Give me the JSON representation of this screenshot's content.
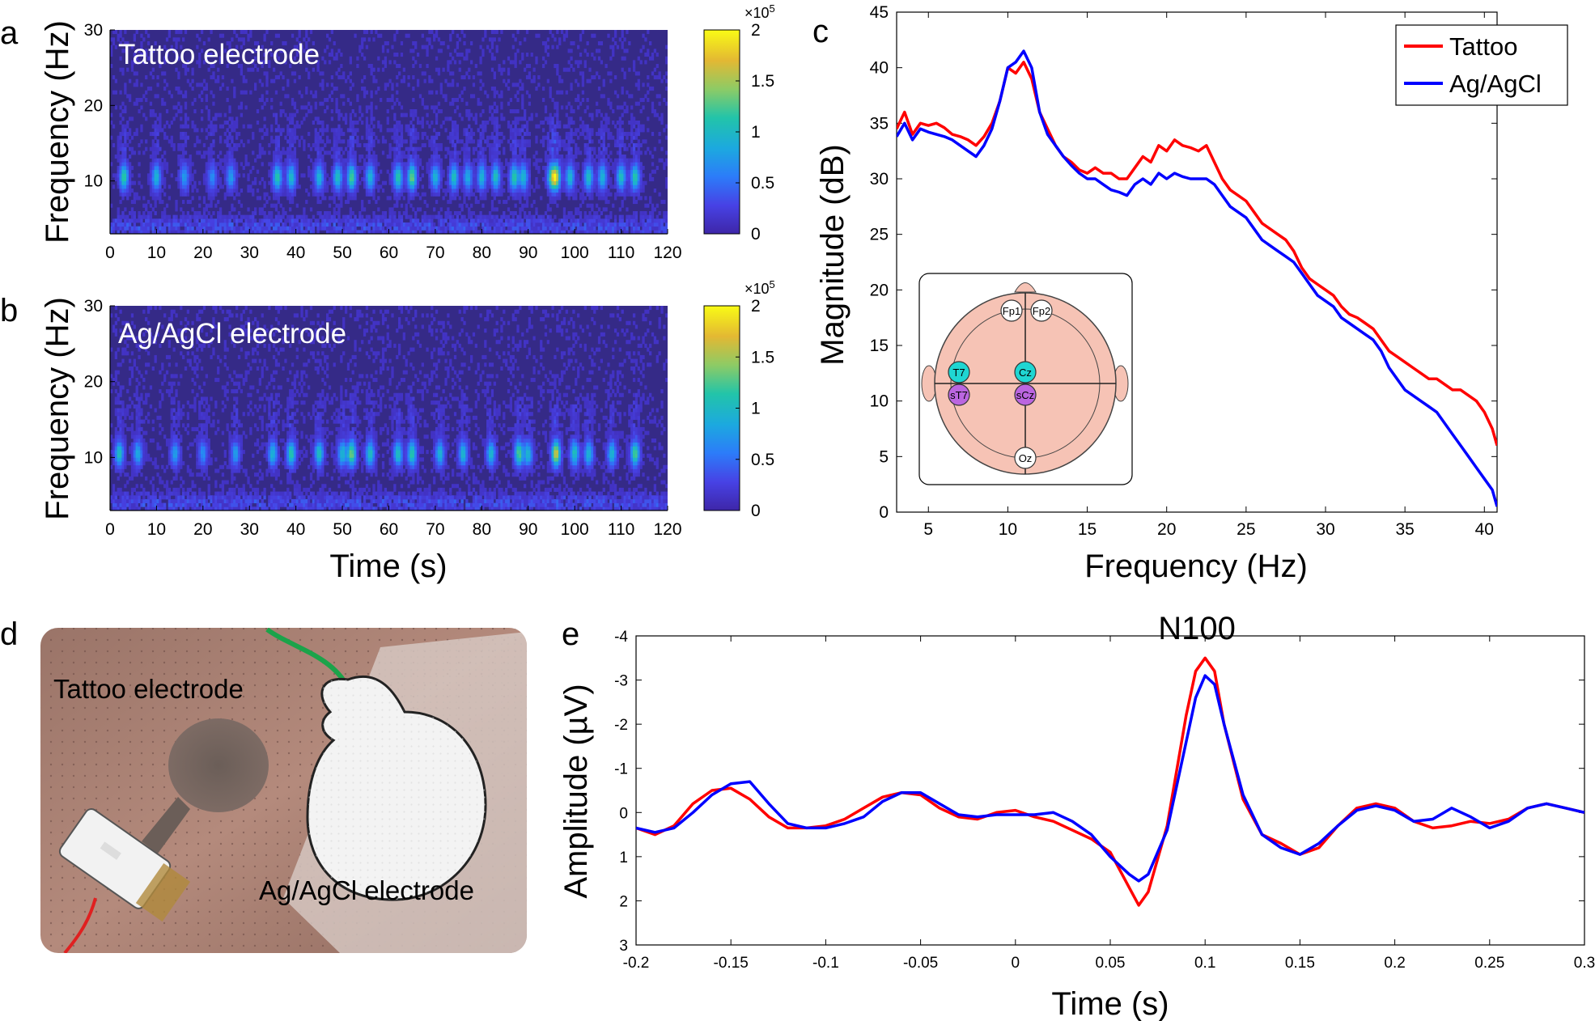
{
  "panel_letters": {
    "a": "a",
    "b": "b",
    "c": "c",
    "d": "d",
    "e": "e"
  },
  "chart_data": [
    {
      "id": "a",
      "type": "heatmap",
      "annotation": "Tattoo electrode",
      "xlabel": "",
      "ylabel": "Frequency (Hz)",
      "xlim": [
        0,
        120
      ],
      "ylim": [
        3,
        30
      ],
      "xticks": [
        "0",
        "10",
        "20",
        "30",
        "40",
        "50",
        "60",
        "70",
        "80",
        "90",
        "100",
        "110",
        "120"
      ],
      "yticks": [
        "10",
        "20",
        "30"
      ],
      "colorbar": {
        "ticks": [
          "0",
          "0.5",
          "1",
          "1.5",
          "2"
        ],
        "scale_label": "×10",
        "scale_exp": "5",
        "range": [
          0,
          200000
        ]
      },
      "colormap": [
        "#3e26a8",
        "#4742e5",
        "#2c7cf9",
        "#1ca9df",
        "#22c4a9",
        "#8dcb65",
        "#e3b833",
        "#f9fb15"
      ],
      "band_peaks": [
        [
          3,
          0.55
        ],
        [
          10,
          0.45
        ],
        [
          16,
          0.35
        ],
        [
          22,
          0.3
        ],
        [
          26,
          0.35
        ],
        [
          36,
          0.55
        ],
        [
          39,
          0.5
        ],
        [
          45,
          0.45
        ],
        [
          49,
          0.5
        ],
        [
          52,
          0.6
        ],
        [
          56,
          0.45
        ],
        [
          62,
          0.55
        ],
        [
          65,
          0.65
        ],
        [
          70,
          0.45
        ],
        [
          74,
          0.5
        ],
        [
          77,
          0.4
        ],
        [
          80,
          0.45
        ],
        [
          83,
          0.5
        ],
        [
          87,
          0.55
        ],
        [
          89,
          0.45
        ],
        [
          95,
          0.5
        ],
        [
          96,
          0.75
        ],
        [
          99,
          0.45
        ],
        [
          103,
          0.5
        ],
        [
          106,
          0.45
        ],
        [
          110,
          0.5
        ],
        [
          113,
          0.55
        ]
      ]
    },
    {
      "id": "b",
      "type": "heatmap",
      "annotation": "Ag/AgCl electrode",
      "xlabel": "Time (s)",
      "ylabel": "Frequency (Hz)",
      "xlim": [
        0,
        120
      ],
      "ylim": [
        3,
        30
      ],
      "xticks": [
        "0",
        "10",
        "20",
        "30",
        "40",
        "50",
        "60",
        "70",
        "80",
        "90",
        "100",
        "110",
        "120"
      ],
      "yticks": [
        "10",
        "20",
        "30"
      ],
      "colorbar": {
        "ticks": [
          "0",
          "0.5",
          "1",
          "1.5",
          "2"
        ],
        "scale_label": "×10",
        "scale_exp": "5",
        "range": [
          0,
          200000
        ]
      },
      "colormap": [
        "#3e26a8",
        "#4742e5",
        "#2c7cf9",
        "#1ca9df",
        "#22c4a9",
        "#8dcb65",
        "#e3b833",
        "#f9fb15"
      ],
      "band_peaks": [
        [
          2,
          0.5
        ],
        [
          6,
          0.4
        ],
        [
          14,
          0.35
        ],
        [
          20,
          0.3
        ],
        [
          27,
          0.35
        ],
        [
          35,
          0.45
        ],
        [
          39,
          0.55
        ],
        [
          45,
          0.5
        ],
        [
          50,
          0.45
        ],
        [
          52,
          0.65
        ],
        [
          56,
          0.5
        ],
        [
          62,
          0.5
        ],
        [
          65,
          0.55
        ],
        [
          71,
          0.45
        ],
        [
          76,
          0.45
        ],
        [
          82,
          0.45
        ],
        [
          88,
          0.6
        ],
        [
          90,
          0.45
        ],
        [
          96,
          0.8
        ],
        [
          100,
          0.5
        ],
        [
          103,
          0.45
        ],
        [
          108,
          0.45
        ],
        [
          113,
          0.6
        ]
      ]
    },
    {
      "id": "c",
      "type": "line",
      "xlabel": "Frequency (Hz)",
      "ylabel": "Magnitude (dB)",
      "xlim": [
        3,
        40.8
      ],
      "ylim": [
        0,
        45
      ],
      "xticks": [
        "5",
        "10",
        "15",
        "20",
        "25",
        "30",
        "35",
        "40"
      ],
      "yticks": [
        "0",
        "5",
        "10",
        "15",
        "20",
        "25",
        "30",
        "35",
        "40",
        "45"
      ],
      "legend": "top-right",
      "series": [
        {
          "name": "Tattoo",
          "color": "#ff0000",
          "x": [
            3,
            3.5,
            4,
            4.5,
            5,
            5.5,
            6,
            6.5,
            7,
            7.5,
            8,
            8.5,
            9,
            9.5,
            10,
            10.5,
            11,
            11.5,
            12,
            12.5,
            13,
            13.5,
            14,
            14.5,
            15,
            15.5,
            16,
            16.5,
            17,
            17.5,
            18,
            18.5,
            19,
            19.5,
            20,
            20.5,
            21,
            21.5,
            22,
            22.5,
            23,
            23.5,
            24,
            24.5,
            25,
            25.5,
            26,
            26.5,
            27,
            27.5,
            28,
            28.5,
            29,
            29.5,
            30,
            30.5,
            31,
            31.5,
            32,
            32.5,
            33,
            33.5,
            34,
            34.5,
            35,
            35.5,
            36,
            36.5,
            37,
            37.5,
            38,
            38.5,
            39,
            39.5,
            40,
            40.5,
            40.8
          ],
          "y": [
            34.5,
            36,
            34,
            35,
            34.8,
            35,
            34.6,
            34,
            33.8,
            33.5,
            33,
            33.8,
            35,
            37,
            40,
            39.5,
            40.5,
            39,
            36,
            34.5,
            33,
            32,
            31.5,
            30.8,
            30.5,
            31,
            30.5,
            30.5,
            30,
            30,
            31,
            32,
            31.5,
            33,
            32.5,
            33.5,
            33,
            32.8,
            32.5,
            33,
            31.5,
            30,
            29,
            28.5,
            28,
            27,
            26,
            25.5,
            25,
            24.5,
            23.5,
            22,
            21,
            20.5,
            20,
            19.5,
            18.5,
            17.8,
            17.5,
            17,
            16.5,
            15.5,
            14.5,
            14,
            13.5,
            13,
            12.5,
            12,
            12,
            11.5,
            11,
            11,
            10.5,
            10,
            9,
            7.5,
            6
          ]
        },
        {
          "name": "Ag/AgCl",
          "color": "#0000ff",
          "x": [
            3,
            3.5,
            4,
            4.5,
            5,
            5.5,
            6,
            6.5,
            7,
            7.5,
            8,
            8.5,
            9,
            9.5,
            10,
            10.5,
            11,
            11.5,
            12,
            12.5,
            13,
            13.5,
            14,
            14.5,
            15,
            15.5,
            16,
            16.5,
            17,
            17.5,
            18,
            18.5,
            19,
            19.5,
            20,
            20.5,
            21,
            21.5,
            22,
            22.5,
            23,
            23.5,
            24,
            24.5,
            25,
            25.5,
            26,
            26.5,
            27,
            27.5,
            28,
            28.5,
            29,
            29.5,
            30,
            30.5,
            31,
            31.5,
            32,
            32.5,
            33,
            33.5,
            34,
            34.5,
            35,
            35.5,
            36,
            36.5,
            37,
            37.5,
            38,
            38.5,
            39,
            39.5,
            40,
            40.5,
            40.8
          ],
          "y": [
            33.8,
            35,
            33.5,
            34.5,
            34.2,
            34,
            33.8,
            33.5,
            33,
            32.5,
            32,
            33,
            34.5,
            37,
            40,
            40.5,
            41.5,
            40,
            36,
            34,
            33,
            32,
            31.2,
            30.5,
            30,
            30,
            29.5,
            29,
            28.8,
            28.5,
            29.5,
            30,
            29.5,
            30.5,
            30,
            30.5,
            30.2,
            30,
            30,
            30,
            29.5,
            28.5,
            27.5,
            27,
            26.5,
            25.5,
            24.5,
            24,
            23.5,
            23,
            22.5,
            21.5,
            20.5,
            19.5,
            19,
            18.5,
            17.5,
            17,
            16.5,
            16,
            15.5,
            14.5,
            13,
            12,
            11,
            10.5,
            10,
            9.5,
            9,
            8,
            7,
            6,
            5,
            4,
            3,
            2,
            0.5
          ]
        }
      ],
      "inset": {
        "type": "electrode-map",
        "electrodes": [
          {
            "label": "Fp1",
            "color": "#ffffff"
          },
          {
            "label": "Fp2",
            "color": "#ffffff"
          },
          {
            "label": "T7",
            "color": "#1fd6d2"
          },
          {
            "label": "Cz",
            "color": "#1fd6d2"
          },
          {
            "label": "sT7",
            "color": "#bb66e0"
          },
          {
            "label": "sCz",
            "color": "#bb66e0"
          },
          {
            "label": "Oz",
            "color": "#ffffff"
          }
        ]
      }
    },
    {
      "id": "e",
      "type": "line",
      "title": "N100",
      "xlabel": "Time (s)",
      "ylabel": "Amplitude (µV)",
      "xlim": [
        -0.2,
        0.3
      ],
      "ylim": [
        3,
        -4
      ],
      "y_reversed": true,
      "xticks": [
        "-0.2",
        "-0.15",
        "-0.1",
        "-0.05",
        "0",
        "0.05",
        "0.1",
        "0.15",
        "0.2",
        "0.25",
        "0.3"
      ],
      "yticks": [
        "-4",
        "-3",
        "-2",
        "-1",
        "0",
        "1",
        "2",
        "3"
      ],
      "series": [
        {
          "name": "Tattoo",
          "color": "#ff0000",
          "x": [
            -0.2,
            -0.19,
            -0.18,
            -0.17,
            -0.16,
            -0.15,
            -0.14,
            -0.13,
            -0.12,
            -0.11,
            -0.1,
            -0.09,
            -0.08,
            -0.07,
            -0.06,
            -0.05,
            -0.04,
            -0.03,
            -0.02,
            -0.01,
            0,
            0.01,
            0.02,
            0.03,
            0.04,
            0.05,
            0.06,
            0.065,
            0.07,
            0.08,
            0.09,
            0.095,
            0.1,
            0.105,
            0.11,
            0.12,
            0.13,
            0.14,
            0.15,
            0.16,
            0.17,
            0.18,
            0.19,
            0.2,
            0.21,
            0.22,
            0.23,
            0.24,
            0.25,
            0.26,
            0.27,
            0.28,
            0.29,
            0.3
          ],
          "y": [
            0.35,
            0.5,
            0.3,
            -0.2,
            -0.5,
            -0.55,
            -0.3,
            0.1,
            0.35,
            0.35,
            0.3,
            0.15,
            -0.1,
            -0.35,
            -0.45,
            -0.4,
            -0.1,
            0.1,
            0.15,
            0,
            -0.05,
            0.1,
            0.2,
            0.4,
            0.6,
            0.9,
            1.7,
            2.1,
            1.8,
            0.3,
            -2.2,
            -3.2,
            -3.5,
            -3.2,
            -2,
            -0.3,
            0.5,
            0.7,
            0.95,
            0.8,
            0.3,
            -0.1,
            -0.2,
            -0.1,
            0.2,
            0.35,
            0.3,
            0.2,
            0.25,
            0.15,
            -0.1,
            -0.2,
            -0.1,
            0
          ]
        },
        {
          "name": "Ag/AgCl",
          "color": "#0000ff",
          "x": [
            -0.2,
            -0.19,
            -0.18,
            -0.17,
            -0.16,
            -0.15,
            -0.14,
            -0.13,
            -0.12,
            -0.11,
            -0.1,
            -0.09,
            -0.08,
            -0.07,
            -0.06,
            -0.05,
            -0.04,
            -0.03,
            -0.02,
            -0.01,
            0,
            0.01,
            0.02,
            0.03,
            0.04,
            0.05,
            0.06,
            0.065,
            0.07,
            0.08,
            0.09,
            0.095,
            0.1,
            0.105,
            0.11,
            0.12,
            0.13,
            0.14,
            0.15,
            0.16,
            0.17,
            0.18,
            0.19,
            0.2,
            0.21,
            0.22,
            0.23,
            0.24,
            0.25,
            0.26,
            0.27,
            0.28,
            0.29,
            0.3
          ],
          "y": [
            0.35,
            0.45,
            0.35,
            0,
            -0.4,
            -0.65,
            -0.7,
            -0.2,
            0.25,
            0.35,
            0.35,
            0.25,
            0.1,
            -0.25,
            -0.45,
            -0.45,
            -0.2,
            0.05,
            0.1,
            0.05,
            0.05,
            0.05,
            0,
            0.2,
            0.5,
            1,
            1.4,
            1.55,
            1.4,
            0.4,
            -1.6,
            -2.6,
            -3.1,
            -2.9,
            -2,
            -0.4,
            0.5,
            0.8,
            0.95,
            0.7,
            0.3,
            -0.05,
            -0.15,
            -0.05,
            0.2,
            0.15,
            -0.1,
            0.1,
            0.35,
            0.2,
            -0.1,
            -0.2,
            -0.1,
            0
          ]
        }
      ]
    }
  ],
  "photo": {
    "label_tattoo": "Tattoo electrode",
    "label_agagcl": "Ag/AgCl electrode"
  }
}
